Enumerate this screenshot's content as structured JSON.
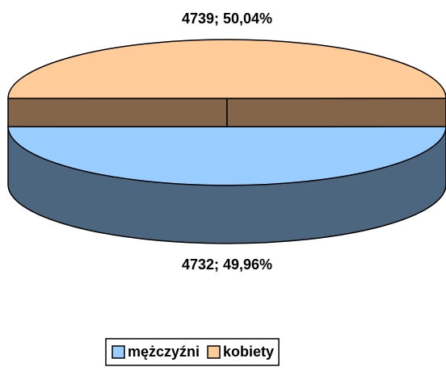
{
  "chart_data": {
    "type": "pie",
    "categories": [
      "mężczyźni",
      "kobiety"
    ],
    "values": [
      4732,
      4739
    ],
    "value_labels": [
      "4732; 49,96%",
      "4739; 50,04%"
    ],
    "colors": [
      "#99ccff",
      "#ffcc99"
    ],
    "legend": "bottom"
  }
}
